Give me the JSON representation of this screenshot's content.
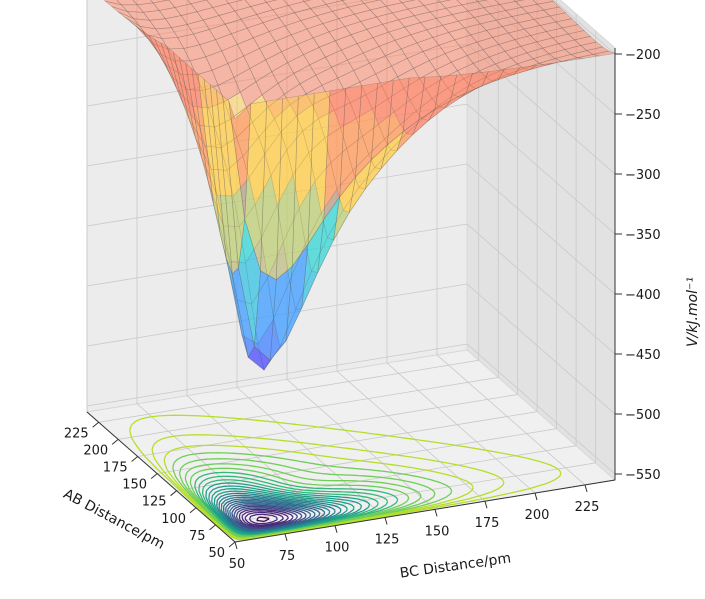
{
  "chart_data": {
    "type": "surface3d",
    "title": "",
    "xlabel": "AB Distance/pm",
    "ylabel": "BC Distance/pm",
    "zlabel": "V/kJ.mol⁻¹",
    "x_ticks": [
      "50",
      "75",
      "100",
      "125",
      "150",
      "175",
      "200",
      "225"
    ],
    "y_ticks": [
      "50",
      "75",
      "100",
      "125",
      "150",
      "175",
      "200",
      "225"
    ],
    "z_ticks": [
      "−200",
      "−250",
      "−300",
      "−350",
      "−400",
      "−450",
      "−500",
      "−550"
    ],
    "xlim": [
      50,
      240
    ],
    "ylim": [
      50,
      240
    ],
    "zlim": [
      -555,
      -195
    ],
    "grid": true,
    "surface_colormap": "jet",
    "contour_colormap": "viridis",
    "surface": {
      "plateau_energy": -200,
      "well_minimum": -450,
      "saddle_point_energy": -400,
      "energy_bands": [
        {
          "range": [
            -450,
            -400
          ],
          "color": "#4a4aff"
        },
        {
          "range": [
            -400,
            -350
          ],
          "color": "#3b9bff"
        },
        {
          "range": [
            -350,
            -300
          ],
          "color": "#33d6d6"
        },
        {
          "range": [
            -300,
            -250
          ],
          "color": "#ffcc44"
        },
        {
          "range": [
            -250,
            -200
          ],
          "color": "#ff8060"
        }
      ]
    }
  }
}
